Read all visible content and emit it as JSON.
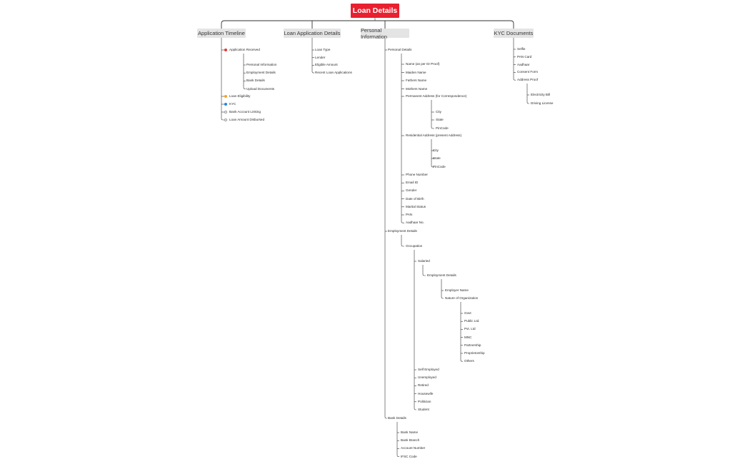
{
  "root": {
    "label": "Loan Details",
    "color": "#e8202f"
  },
  "categories": {
    "timeline": "Application Timeline",
    "loan_app": "Loan Application Details",
    "personal": "Personal Information",
    "kyc": "KYC Documents"
  },
  "timeline": {
    "received": "Application Received",
    "received_status": "red",
    "sub": [
      "Personal Information",
      "Employment Details",
      "Bank Details",
      "Upload Documents"
    ],
    "steps": [
      {
        "label": "Loan Eligibility",
        "status": "orange"
      },
      {
        "label": "KYC",
        "status": "blue"
      },
      {
        "label": "Bank Account Linking",
        "status": "empty"
      },
      {
        "label": "Loan Amount Disbursed",
        "status": "empty"
      }
    ]
  },
  "loan_app": [
    "Loan Type",
    "Lender",
    "Eligible Amount",
    "Recent Loan Applications"
  ],
  "personal": {
    "personal_details": "Personal Details",
    "pd_items_a": [
      "Name (as per ID Proof)",
      "Maiden Name",
      "Fathers Name",
      "Mothers Name"
    ],
    "permanent_address": "Permanent Address (for Correspondence)",
    "permanent_sub": [
      "City",
      "State",
      "PinCode"
    ],
    "residential_address": "Residential Address (present Address)",
    "residential_sub": [
      "City",
      "State",
      "PinCode"
    ],
    "pd_items_b": [
      "Phone Number",
      "Email ID",
      "Gender",
      "Date of Birth",
      "Marital Status",
      "PAN",
      "Aadhaar No."
    ],
    "employment_details": "Employment Details",
    "occupation": "Occupation",
    "salaried": "Salaried",
    "emp_details_sub": "Employment Details",
    "employer_name": "Employer Name",
    "nature_org": "Nature of Organization",
    "org_types": [
      "Govt",
      "Public Ltd.",
      "Pvt. Ltd",
      "MNC",
      "Partnership",
      "Proprietorship",
      "Others"
    ],
    "occupations_other": [
      "Self Employed",
      "Unemployed",
      "Retired",
      "Housewife",
      "Politician",
      "Student"
    ],
    "bank_details": "Bank Details",
    "bank_items": [
      "Bank Name",
      "Bank Branch",
      "Account Number",
      "IFSC Code"
    ]
  },
  "kyc": {
    "items": [
      "Selfie",
      "PAN Card",
      "Aadhaar",
      "Consent Form"
    ],
    "address_proof": "Address Proof",
    "address_sub": [
      "Electricity Bill",
      "Driving License"
    ]
  }
}
